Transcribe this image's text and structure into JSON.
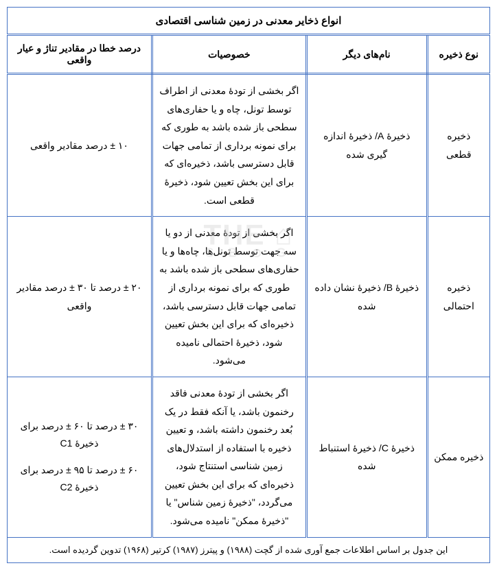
{
  "table": {
    "title": "انواع ذخایر معدنی در زمین شناسی اقتصادی",
    "columns": [
      "نوع ذخیره",
      "نام‌های دیگر",
      "خصوصیات",
      "درصد خطا در مقادیر تناژ و عیار واقعی"
    ],
    "rows": [
      {
        "type": "ذخیره قطعی",
        "names": "ذخیرۀ A/ ذخیرۀ اندازه گیری شده",
        "desc": "اگر بخشی از تودۀ معدنی از اطراف توسط تونل، چاه و یا حفاری‌های سطحی باز شده باشد به طوری که برای نمونه برداری از تمامی جهات قابل دسترسی باشد، ذخیره‌ای که برای این بخش تعیین شود، ذخیرۀ قطعی است.",
        "error": "۱۰ ± درصد مقادیر واقعی"
      },
      {
        "type": "ذخیره احتمالی",
        "names": "ذخیرۀ B/ ذخیرۀ نشان داده شده",
        "desc": "اگر بخشی از تودۀ معدنی از دو یا سه جهت توسط تونل‌ها، چاه‌ها و یا حفاری‌های سطحی باز شده باشد به طوری که برای نمونه برداری از تمامی جهات قابل دسترسی باشد، ذخیره‌ای که برای این بخش تعیین شود، ذخیرۀ احتمالی نامیده می‌شود.",
        "error": "۲۰ ± درصد تا ۳۰ ± درصد مقادیر واقعی"
      },
      {
        "type": "ذخیره ممکن",
        "names": "ذخیرۀ C/ ذخیرۀ استنباط شده",
        "desc": "اگر بخشی از تودۀ معدنی فاقد رخنمون باشد، یا آنکه فقط در یک بُعد رخنمون داشته باشد، و تعیین ذخیره با استفاده از استدلال‌های زمین شناسی استنتاج شود، ذخیره‌ای که برای این بخش تعیین می‌گردد، \"ذخیرۀ زمین شناس\" یا \"ذخیرۀ ممکن\" نامیده می‌شود.",
        "error_line1": "۳۰ ± درصد تا ۶۰ ± درصد برای ذخیرۀ C1",
        "error_line2": "۶۰ ± درصد تا ۹۵ ± درصد برای ذخیرۀ C2"
      }
    ],
    "footer": "این جدول بر اساس اطلاعات جمع آوری شده از گچت (۱۹۸۸) و پیترز (۱۹۸۷) کرتیر (۱۹۶۸) تدوین گردیده است."
  },
  "watermark": {
    "main": "⌂ THE",
    "sub": "S B ⊙ G"
  },
  "style": {
    "border_color": "#4472c4",
    "text_color": "#000000",
    "background": "#ffffff"
  }
}
